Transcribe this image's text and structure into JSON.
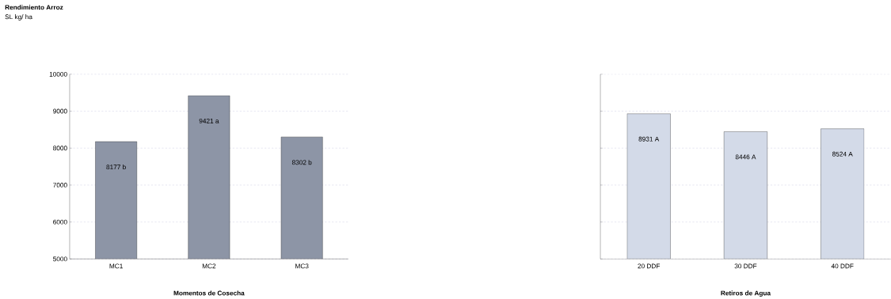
{
  "chart_data": [
    {
      "type": "bar",
      "title": "Rendimiento Arroz",
      "subtitle": "SL kg/ ha",
      "xlabel": "Momentos de Cosecha",
      "categories": [
        "MC1",
        "MC2",
        "MC3"
      ],
      "values": [
        8177,
        9421,
        8302
      ],
      "value_labels": [
        "8177 b",
        "9421 a",
        "8302 b"
      ],
      "color": "#8d95a6",
      "ylim": [
        5000,
        10000
      ],
      "yticks": [
        5000,
        6000,
        7000,
        8000,
        9000,
        10000
      ],
      "grid": "y"
    },
    {
      "type": "bar",
      "xlabel": "Retiros de Agua",
      "categories": [
        "20 DDF",
        "30 DDF",
        "40 DDF"
      ],
      "values": [
        8931,
        8446,
        8524
      ],
      "value_labels": [
        "8931 A",
        "8446 A",
        "8524 A"
      ],
      "color": "#d3dae8",
      "ylim": [
        5000,
        10000
      ],
      "yticks": [
        5000,
        6000,
        7000,
        8000,
        9000,
        10000
      ],
      "grid": "y",
      "tick_labels": "x"
    }
  ]
}
